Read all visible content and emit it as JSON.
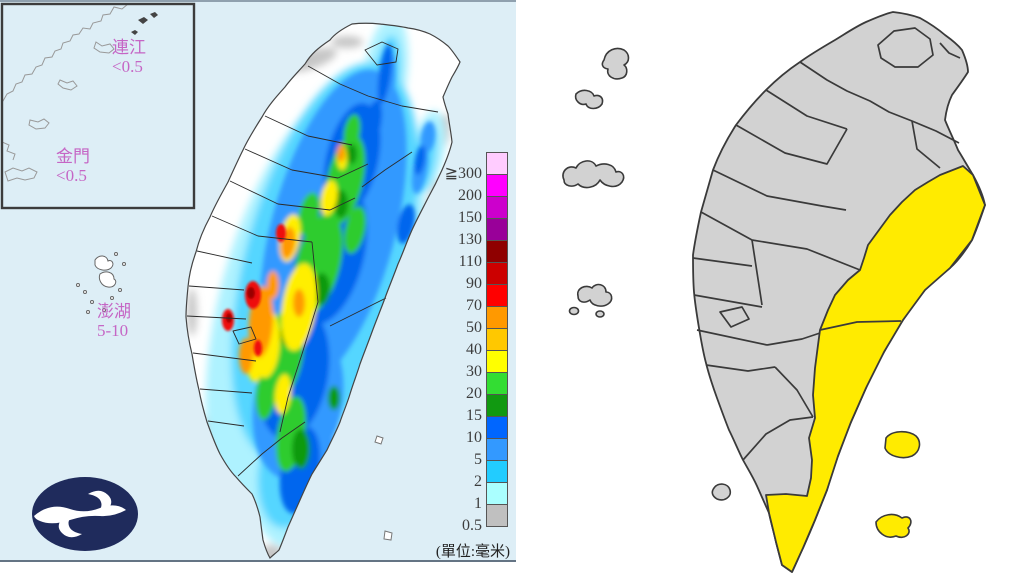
{
  "panels": {
    "left": {
      "description": "accumulated rainfall map",
      "sea_color": "#ddeef6",
      "land_color": "#ffffff",
      "label_color": "#c566c5",
      "inset_labels": {
        "lienchiang": {
          "name": "連江",
          "value": "<0.5"
        },
        "kinmen": {
          "name": "金門",
          "value": "<0.5"
        }
      },
      "penghu_label": {
        "name": "澎湖",
        "value": "5-10"
      },
      "unit_note": "(單位:毫米)",
      "legend": {
        "bands": [
          {
            "label": "≧300",
            "color": "#ffccff"
          },
          {
            "label": "200",
            "color": "#ff00ff"
          },
          {
            "label": "150",
            "color": "#cc00cc"
          },
          {
            "label": "130",
            "color": "#990099"
          },
          {
            "label": "110",
            "color": "#8f0000"
          },
          {
            "label": "90",
            "color": "#cc0000"
          },
          {
            "label": "70",
            "color": "#ff0000"
          },
          {
            "label": "50",
            "color": "#ff9900"
          },
          {
            "label": "40",
            "color": "#ffc800"
          },
          {
            "label": "30",
            "color": "#ffff00"
          },
          {
            "label": "20",
            "color": "#33dd33"
          },
          {
            "label": "15",
            "color": "#119911"
          },
          {
            "label": "10",
            "color": "#0066ff"
          },
          {
            "label": "5",
            "color": "#3399ff"
          },
          {
            "label": "2",
            "color": "#22ccff"
          },
          {
            "label": "1",
            "color": "#aaffff"
          },
          {
            "label": "0.5",
            "color": "#c0c0c0"
          }
        ]
      }
    },
    "right": {
      "description": "county warning map",
      "background": "#ffffff",
      "county_fill": "#d2d2d2",
      "warning_fill": "#ffeb00",
      "border_color": "#3a3a3a"
    }
  },
  "logo": {
    "bg": "#1f2b5c",
    "glyph": "#ffffff"
  }
}
